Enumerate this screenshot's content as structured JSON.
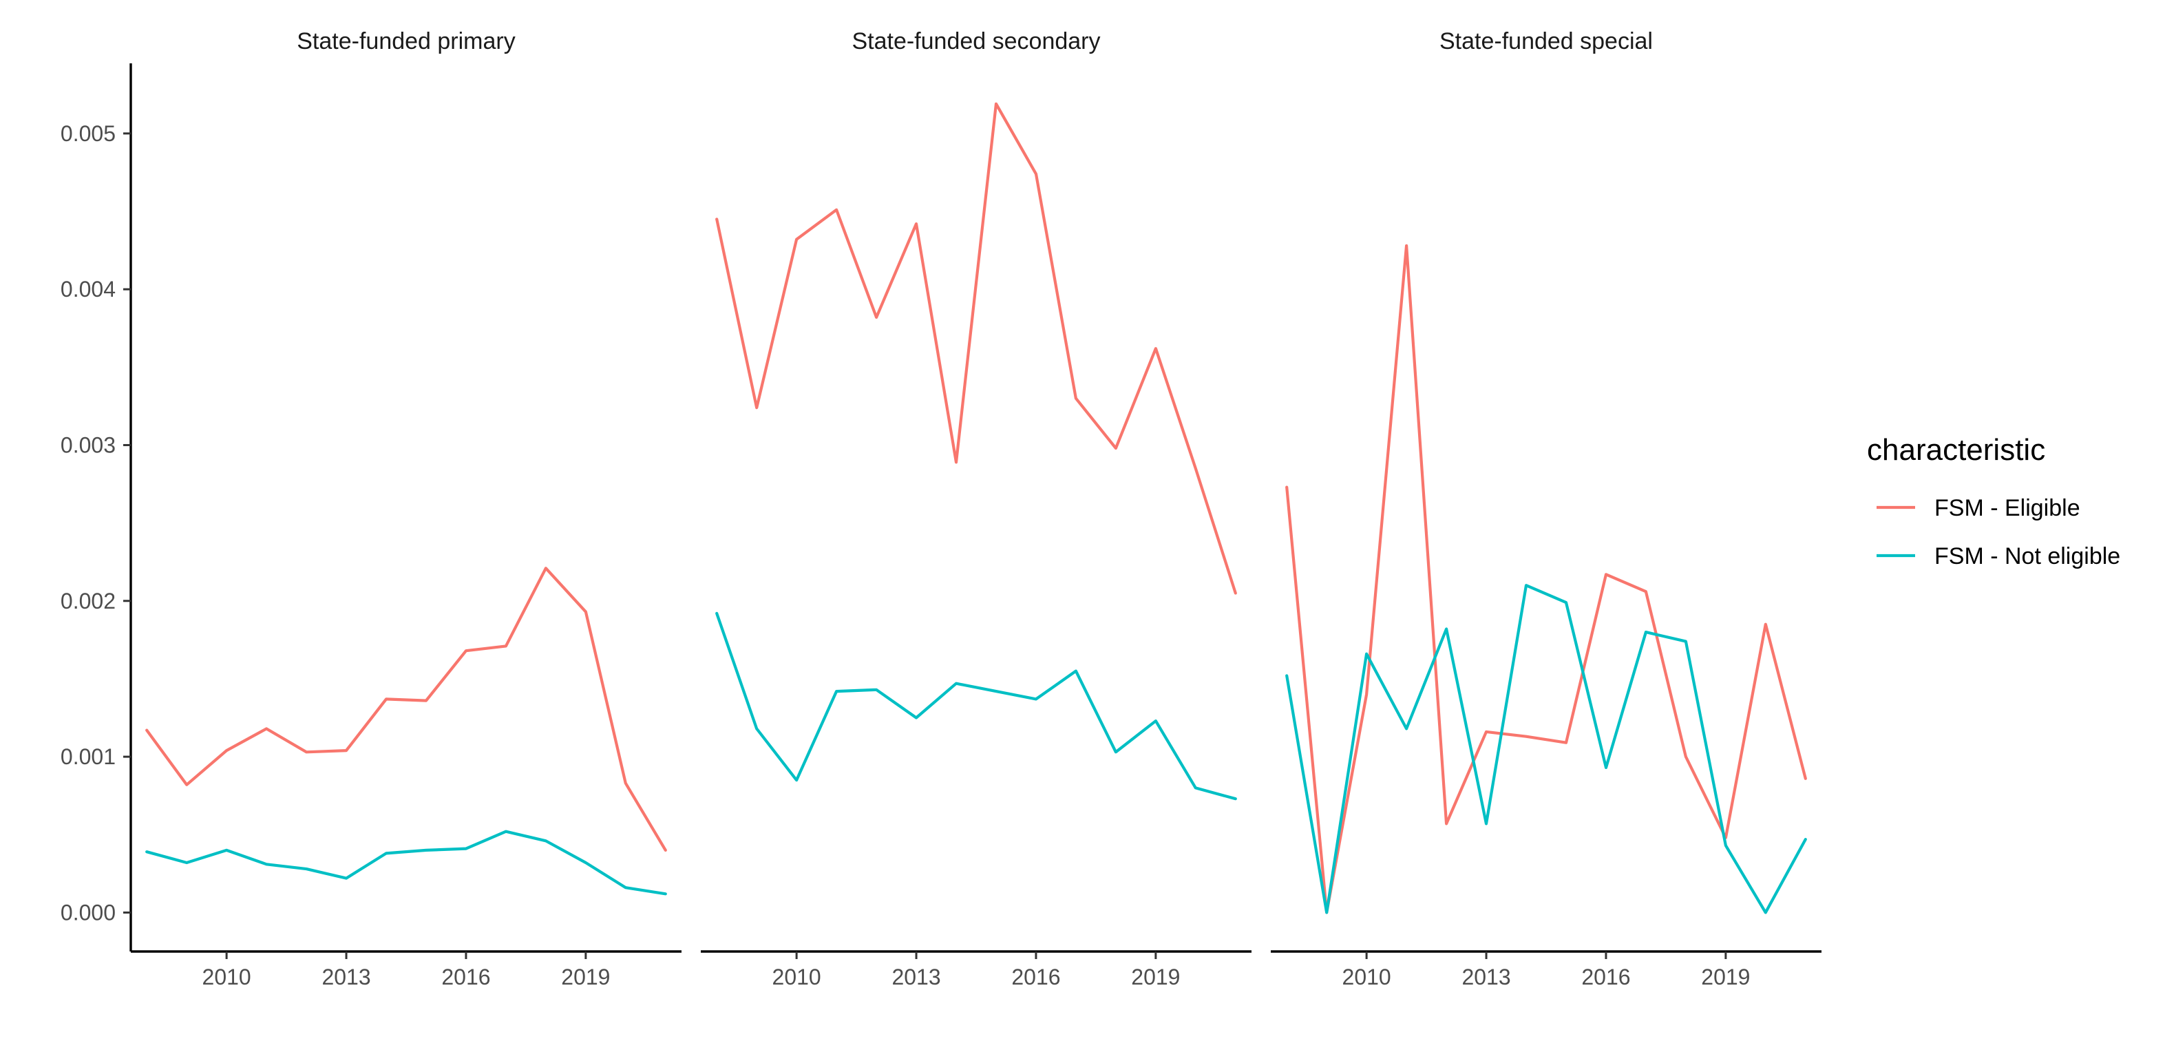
{
  "chart_data": {
    "type": "line",
    "facets": [
      {
        "title": "State-funded primary",
        "x": [
          2008,
          2009,
          2010,
          2011,
          2012,
          2013,
          2014,
          2015,
          2016,
          2017,
          2018,
          2019,
          2020,
          2021
        ],
        "series": [
          {
            "name": "FSM - Eligible",
            "values": [
              0.00117,
              0.00082,
              0.00104,
              0.00118,
              0.00103,
              0.00104,
              0.00137,
              0.00136,
              0.00168,
              0.00171,
              0.00221,
              0.00193,
              0.00083,
              0.0004
            ]
          },
          {
            "name": "FSM - Not eligible",
            "values": [
              0.00039,
              0.00032,
              0.0004,
              0.00031,
              0.00028,
              0.00022,
              0.00038,
              0.0004,
              0.00041,
              0.00052,
              0.00046,
              0.00032,
              0.00016,
              0.00012
            ]
          }
        ]
      },
      {
        "title": "State-funded secondary",
        "x": [
          2008,
          2009,
          2010,
          2011,
          2012,
          2013,
          2014,
          2015,
          2016,
          2017,
          2018,
          2019,
          2020,
          2021
        ],
        "series": [
          {
            "name": "FSM - Eligible",
            "values": [
              0.00445,
              0.00324,
              0.00432,
              0.00451,
              0.00382,
              0.00442,
              0.00289,
              0.00519,
              0.00474,
              0.0033,
              0.00298,
              0.00362,
              0.00285,
              0.00205
            ]
          },
          {
            "name": "FSM - Not eligible",
            "values": [
              0.00192,
              0.00118,
              0.00085,
              0.00142,
              0.00143,
              0.00125,
              0.00147,
              0.00142,
              0.00137,
              0.00155,
              0.00103,
              0.00123,
              0.0008,
              0.00073
            ]
          }
        ]
      },
      {
        "title": "State-funded special",
        "x": [
          2008,
          2009,
          2010,
          2011,
          2012,
          2013,
          2014,
          2015,
          2016,
          2017,
          2018,
          2019,
          2020,
          2021
        ],
        "series": [
          {
            "name": "FSM - Eligible",
            "values": [
              0.00273,
              0.0,
              0.0014,
              0.00428,
              0.00057,
              0.00116,
              0.00113,
              0.00109,
              0.00217,
              0.00206,
              0.001,
              0.00048,
              0.00185,
              0.00086
            ]
          },
          {
            "name": "FSM - Not eligible",
            "values": [
              0.00152,
              0.0,
              0.00166,
              0.00118,
              0.00182,
              0.00057,
              0.0021,
              0.00199,
              0.00093,
              0.0018,
              0.00174,
              0.00043,
              0.0,
              0.00047
            ]
          }
        ]
      }
    ],
    "xticks": [
      2010,
      2013,
      2016,
      2019
    ],
    "xtick_labels": [
      "2010",
      "2013",
      "2016",
      "2019"
    ],
    "yticks": [
      0,
      0.001,
      0.002,
      0.003,
      0.004,
      0.005
    ],
    "ytick_labels": [
      "0.000",
      "0.001",
      "0.002",
      "0.003",
      "0.004",
      "0.005"
    ],
    "xlim": [
      2007.6,
      2021.4
    ],
    "ylim": [
      -0.00025,
      0.00545
    ],
    "legend": {
      "title": "characteristic",
      "position": "right",
      "entries": [
        {
          "label": "FSM - Eligible",
          "color": "#F8766D"
        },
        {
          "label": "FSM - Not eligible",
          "color": "#00BFC4"
        }
      ]
    },
    "grid": false,
    "xlabel": "",
    "ylabel": ""
  }
}
